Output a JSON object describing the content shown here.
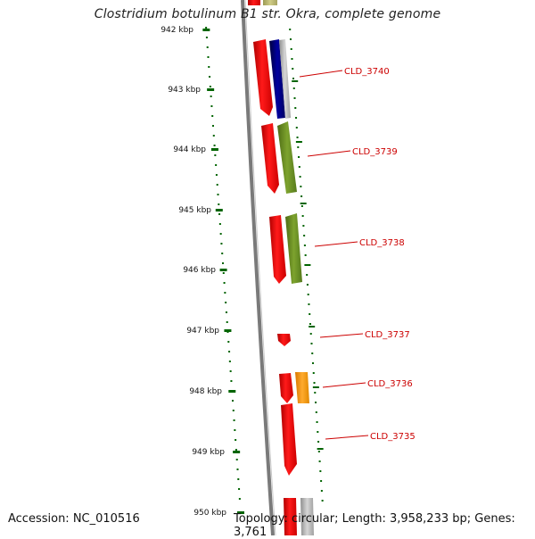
{
  "title": "Clostridium botulinum B1 str. Okra, complete genome",
  "footer": {
    "accession": "Accession: NC_010516",
    "summary": "Topology: circular; Length: 3,958,233 bp; Genes: 3,761"
  },
  "axis": {
    "ticks": [
      "942 kbp",
      "943 kbp",
      "944 kbp",
      "945 kbp",
      "946 kbp",
      "947 kbp",
      "948 kbp",
      "949 kbp",
      "950 kbp"
    ]
  },
  "genes": [
    {
      "label": "CLD_3740"
    },
    {
      "label": "CLD_3739"
    },
    {
      "label": "CLD_3738"
    },
    {
      "label": "CLD_3737"
    },
    {
      "label": "CLD_3736"
    },
    {
      "label": "CLD_3735"
    }
  ],
  "colors": {
    "gene_red": "#ff0000",
    "navy": "#000080",
    "olive": "#6b8e23",
    "orange": "#ff9900",
    "gray": "#b0b0b0",
    "tick_green": "#006400",
    "label_red": "#cc0000",
    "backbone": "#808080"
  }
}
